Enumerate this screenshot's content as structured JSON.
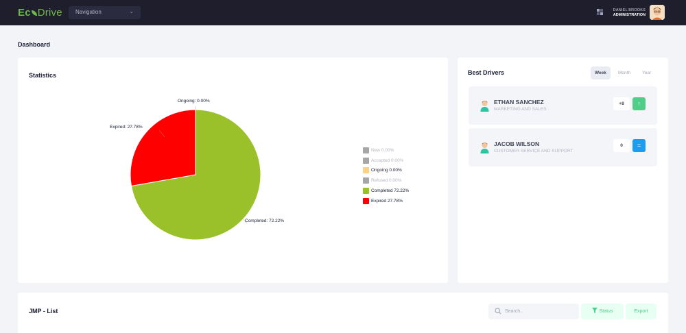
{
  "header": {
    "logo": {
      "part1": "Ec",
      "part2": "Drive"
    },
    "navigation_label": "Navigation",
    "user_name": "DANIEL BROOKS",
    "user_role": "ADMINISTRATION"
  },
  "page_title": "Dashboard",
  "statistics": {
    "title": "Statistics",
    "pie_labels": {
      "ongoing": "Ongoing: 0.00%",
      "expired": "Expired: 27.78%",
      "completed": "Completed: 72.22%"
    },
    "legend": [
      {
        "label": "New",
        "value": "0.00%",
        "color": "#a6a6a6",
        "muted": true
      },
      {
        "label": "Accepted",
        "value": "0.00%",
        "color": "#a6a6a6",
        "muted": true
      },
      {
        "label": "Ongoing",
        "value": "0.00%",
        "color": "#ffd08a",
        "muted": false
      },
      {
        "label": "Refused",
        "value": "0.00%",
        "color": "#a6a6a6",
        "muted": true
      },
      {
        "label": "Completed",
        "value": "72.22%",
        "color": "#9bc12a",
        "muted": false
      },
      {
        "label": "Expired",
        "value": "27.78%",
        "color": "#ff0000",
        "muted": false
      }
    ]
  },
  "chart_data": {
    "type": "pie",
    "categories": [
      "New",
      "Accepted",
      "Ongoing",
      "Refused",
      "Completed",
      "Expired"
    ],
    "values": [
      0.0,
      0.0,
      0.0,
      0.0,
      72.22,
      27.78
    ],
    "colors": [
      "#a6a6a6",
      "#a6a6a6",
      "#ffd08a",
      "#a6a6a6",
      "#9bc12a",
      "#ff0000"
    ],
    "legend": "right"
  },
  "best_drivers": {
    "title": "Best Drivers",
    "periods": [
      "Week",
      "Month",
      "Year"
    ],
    "active_period": "Week",
    "drivers": [
      {
        "name": "ETHAN SANCHEZ",
        "department": "MARKETING AND SALES",
        "score": "+8",
        "trend_icon": "arrow-up-icon",
        "trend_color": "#50cd89"
      },
      {
        "name": "JACOB WILSON",
        "department": "CUSTOMER SERVICE AND SUPPORT",
        "score": "0",
        "trend_icon": "equals-icon",
        "trend_color": "#1b9df0"
      }
    ]
  },
  "jmp_list": {
    "title": "JMP - List",
    "search_placeholder": "Search..",
    "status_label": "Status",
    "export_label": "Export"
  }
}
